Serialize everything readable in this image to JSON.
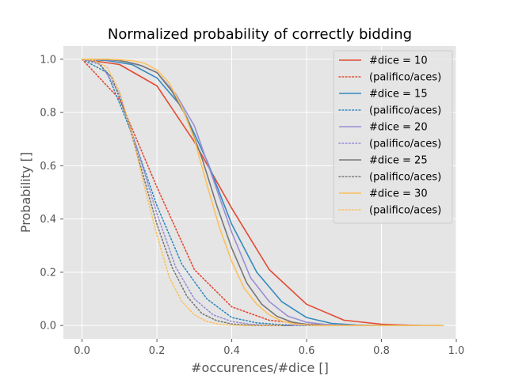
{
  "chart_data": {
    "type": "line",
    "title": "Normalized probability of correctly bidding",
    "xlabel": "#occurences/#dice []",
    "ylabel": "Probability []",
    "xlim": [
      -0.05,
      1.0
    ],
    "ylim": [
      -0.05,
      1.05
    ],
    "xticks": [
      0.0,
      0.2,
      0.4,
      0.6,
      0.8,
      1.0
    ],
    "xtick_labels": [
      "0.0",
      "0.2",
      "0.4",
      "0.6",
      "0.8",
      "1.0"
    ],
    "yticks": [
      0.0,
      0.2,
      0.4,
      0.6,
      0.8,
      1.0
    ],
    "ytick_labels": [
      "0.0",
      "0.2",
      "0.4",
      "0.6",
      "0.8",
      "1.0"
    ],
    "grid": true,
    "legend_position": "top-right",
    "series": [
      {
        "name": "#dice = 10",
        "color": "#E24A33",
        "style": "solid",
        "x": [
          0.0,
          0.1,
          0.2,
          0.3,
          0.4,
          0.5,
          0.6,
          0.7,
          0.8,
          0.9
        ],
        "y": [
          1.0,
          0.98,
          0.9,
          0.69,
          0.44,
          0.21,
          0.08,
          0.02,
          0.005,
          0.0
        ]
      },
      {
        "name": "(palifico/aces)",
        "color": "#E24A33",
        "style": "dotted",
        "x": [
          0.0,
          0.1,
          0.2,
          0.3,
          0.4,
          0.5,
          0.6,
          0.7,
          0.8,
          0.9
        ],
        "y": [
          1.0,
          0.85,
          0.52,
          0.21,
          0.07,
          0.02,
          0.005,
          0.001,
          0.0,
          0.0
        ]
      },
      {
        "name": "#dice = 15",
        "color": "#348ABD",
        "style": "solid",
        "x": [
          0.0,
          0.0667,
          0.1333,
          0.2,
          0.2667,
          0.3333,
          0.4,
          0.4667,
          0.5333,
          0.6,
          0.6667,
          0.7333,
          0.8,
          0.8667,
          0.9333
        ],
        "y": [
          1.0,
          0.995,
          0.98,
          0.93,
          0.82,
          0.62,
          0.38,
          0.2,
          0.09,
          0.03,
          0.008,
          0.002,
          0.0,
          0.0,
          0.0
        ]
      },
      {
        "name": "(palifico/aces)",
        "color": "#348ABD",
        "style": "dotted",
        "x": [
          0.0,
          0.0667,
          0.1333,
          0.2,
          0.2667,
          0.3333,
          0.4,
          0.4667,
          0.5333,
          0.6,
          0.6667
        ],
        "y": [
          1.0,
          0.95,
          0.72,
          0.45,
          0.23,
          0.1,
          0.03,
          0.01,
          0.003,
          0.0,
          0.0
        ]
      },
      {
        "name": "#dice = 20",
        "color": "#988ED5",
        "style": "solid",
        "x": [
          0.0,
          0.05,
          0.1,
          0.15,
          0.2,
          0.25,
          0.3,
          0.35,
          0.4,
          0.45,
          0.5,
          0.55,
          0.6,
          0.65,
          0.7,
          0.75,
          0.8,
          0.85,
          0.9,
          0.95
        ],
        "y": [
          1.0,
          0.999,
          0.995,
          0.98,
          0.95,
          0.87,
          0.75,
          0.55,
          0.35,
          0.18,
          0.09,
          0.035,
          0.012,
          0.004,
          0.001,
          0.0,
          0.0,
          0.0,
          0.0,
          0.0
        ]
      },
      {
        "name": "(palifico/aces)",
        "color": "#988ED5",
        "style": "dotted",
        "x": [
          0.0,
          0.05,
          0.1,
          0.15,
          0.2,
          0.25,
          0.3,
          0.35,
          0.4,
          0.45,
          0.5,
          0.55,
          0.6
        ],
        "y": [
          1.0,
          0.98,
          0.87,
          0.65,
          0.42,
          0.22,
          0.1,
          0.04,
          0.015,
          0.005,
          0.001,
          0.0,
          0.0
        ]
      },
      {
        "name": "#dice = 25",
        "color": "#777777",
        "style": "solid",
        "x": [
          0.0,
          0.04,
          0.08,
          0.12,
          0.16,
          0.2,
          0.24,
          0.28,
          0.32,
          0.36,
          0.4,
          0.44,
          0.48,
          0.52,
          0.56,
          0.6,
          0.64,
          0.68,
          0.72,
          0.76,
          0.8,
          0.88,
          0.96
        ],
        "y": [
          1.0,
          1.0,
          0.998,
          0.99,
          0.975,
          0.95,
          0.88,
          0.78,
          0.63,
          0.45,
          0.29,
          0.16,
          0.08,
          0.035,
          0.013,
          0.004,
          0.001,
          0.0,
          0.0,
          0.0,
          0.0,
          0.0,
          0.0
        ]
      },
      {
        "name": "(palifico/aces)",
        "color": "#777777",
        "style": "dotted",
        "x": [
          0.0,
          0.04,
          0.08,
          0.12,
          0.16,
          0.2,
          0.24,
          0.28,
          0.32,
          0.36,
          0.4,
          0.44,
          0.48,
          0.52,
          0.56
        ],
        "y": [
          1.0,
          0.99,
          0.93,
          0.78,
          0.58,
          0.38,
          0.22,
          0.11,
          0.045,
          0.018,
          0.006,
          0.002,
          0.0,
          0.0,
          0.0
        ]
      },
      {
        "name": "#dice = 30",
        "color": "#FBC15E",
        "style": "solid",
        "x": [
          0.0,
          0.0333,
          0.0667,
          0.1,
          0.1333,
          0.1667,
          0.2,
          0.2333,
          0.2667,
          0.3,
          0.3333,
          0.3667,
          0.4,
          0.4333,
          0.4667,
          0.5,
          0.5333,
          0.5667,
          0.6,
          0.6333,
          0.6667,
          0.7,
          0.7667,
          0.8333,
          0.9,
          0.9667
        ],
        "y": [
          1.0,
          1.0,
          1.0,
          0.998,
          0.995,
          0.985,
          0.96,
          0.91,
          0.82,
          0.7,
          0.53,
          0.37,
          0.24,
          0.14,
          0.08,
          0.04,
          0.017,
          0.006,
          0.002,
          0.0,
          0.0,
          0.0,
          0.0,
          0.0,
          0.0,
          0.0
        ]
      },
      {
        "name": "(palifico/aces)",
        "color": "#FBC15E",
        "style": "dotted",
        "x": [
          0.0,
          0.0333,
          0.0667,
          0.1,
          0.1333,
          0.1667,
          0.2,
          0.2333,
          0.2667,
          0.3,
          0.3333,
          0.3667,
          0.4,
          0.4333,
          0.4667,
          0.5,
          0.5333
        ],
        "y": [
          1.0,
          0.995,
          0.97,
          0.88,
          0.72,
          0.52,
          0.34,
          0.18,
          0.09,
          0.04,
          0.015,
          0.005,
          0.002,
          0.0,
          0.0,
          0.0,
          0.0
        ]
      }
    ]
  }
}
